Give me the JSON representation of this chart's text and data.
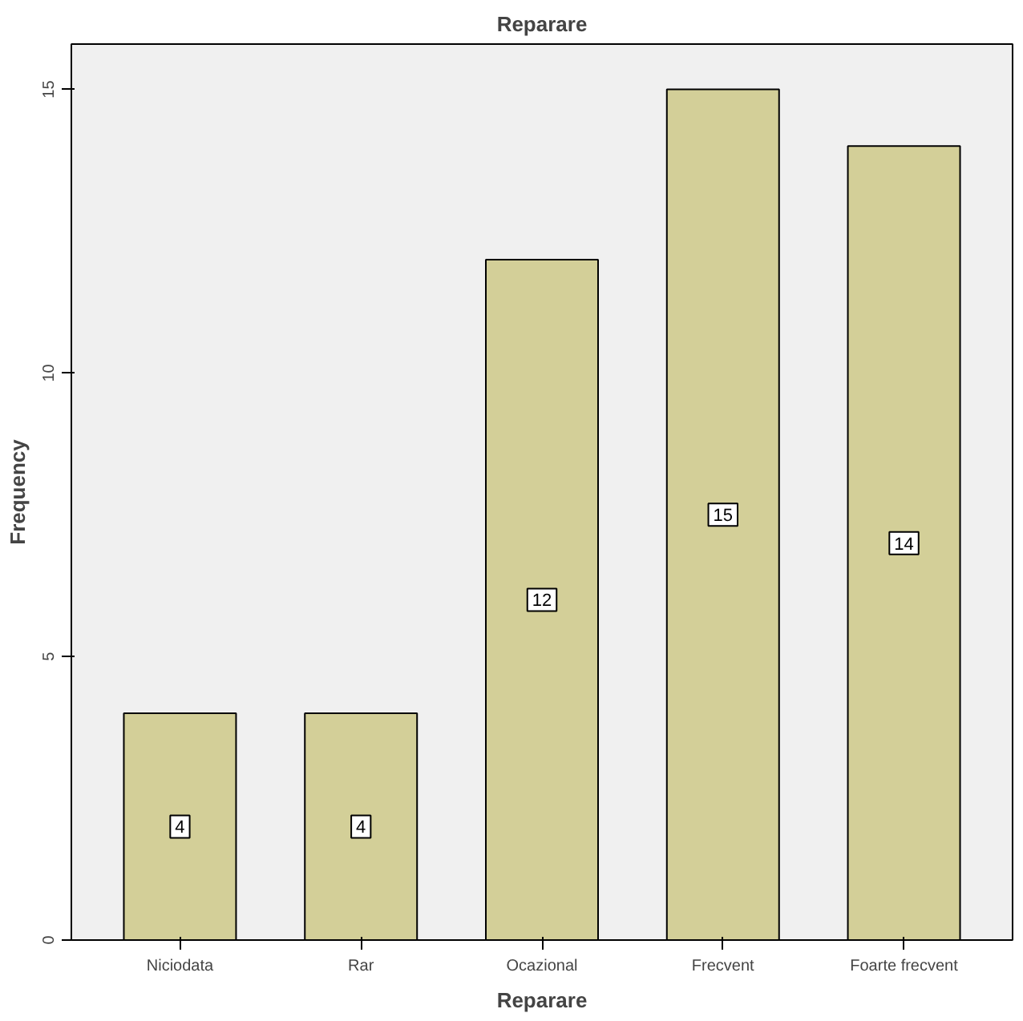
{
  "chart_data": {
    "type": "bar",
    "title": "Reparare",
    "xlabel": "Reparare",
    "ylabel": "Frequency",
    "categories": [
      "Niciodata",
      "Rar",
      "Ocazional",
      "Frecvent",
      "Foarte frecvent"
    ],
    "values": [
      4,
      4,
      12,
      15,
      14
    ],
    "color": "#d3cf98",
    "ylim": [
      0,
      15.8
    ],
    "yticks": [
      0,
      5,
      10,
      15
    ],
    "grid": false,
    "data_labels": true
  }
}
